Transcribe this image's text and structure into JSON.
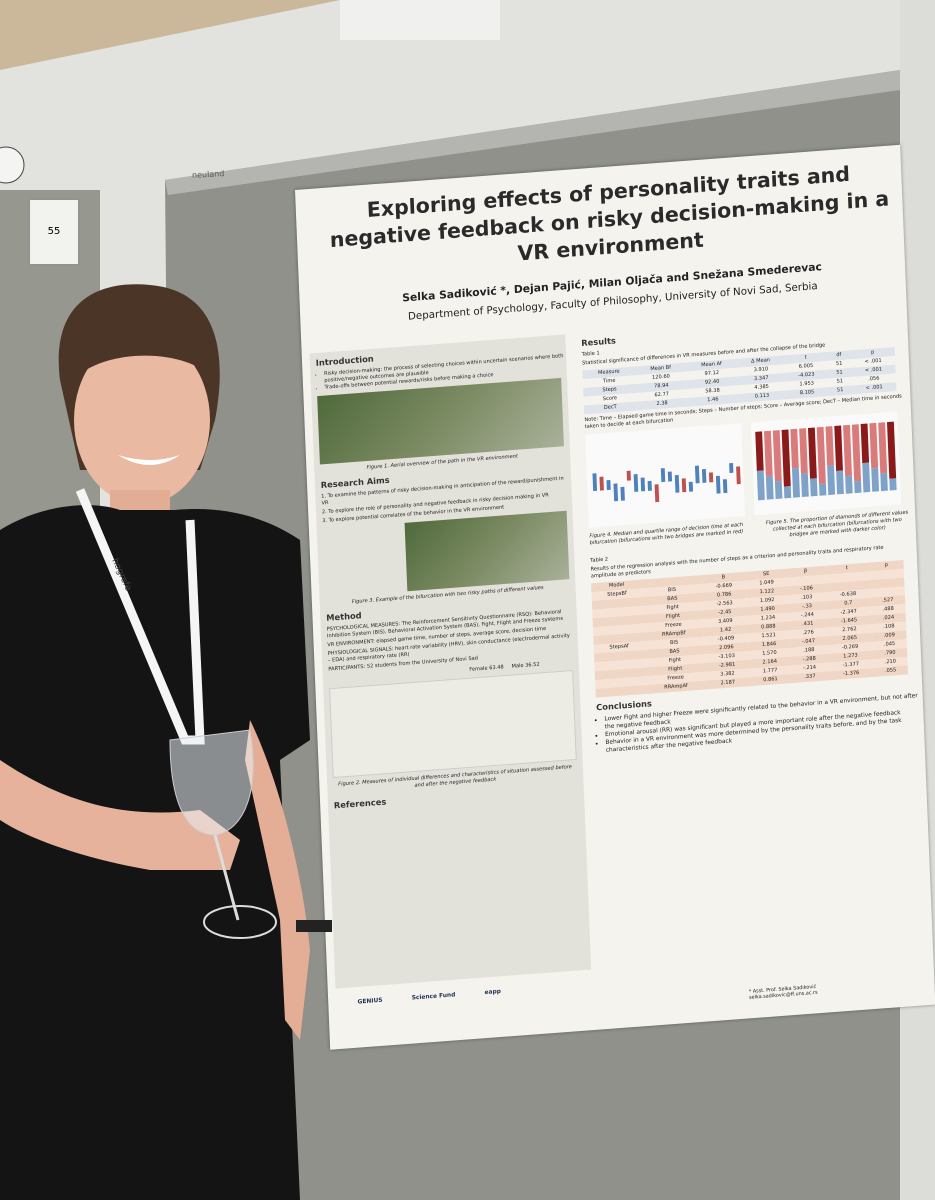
{
  "sign": "55",
  "board_label": "neuland",
  "lanyard": "hogrefe",
  "poster": {
    "title": "Exploring effects of personality traits and negative feedback on risky decision-making in a VR environment",
    "authors": "Selka Sadiković *, Dejan Pajić, Milan Oljača and Snežana Smederevac",
    "affiliation": "Department of Psychology, Faculty of Philosophy, University of Novi Sad, Serbia",
    "introduction": {
      "heading": "Introduction",
      "bullets": [
        "Risky decision-making: the process of selecting choices within uncertain scenarios where both positive/negative outcomes are plausible",
        "Trade-offs between potential rewards/risks before making a choice"
      ],
      "figure_caption": "Figure 1. Aerial overview of the path in the VR environment"
    },
    "research_aims": {
      "heading": "Research Aims",
      "items": [
        "1. To examine the patterns of risky decision-making in anticipation of the reward/punishment in VR",
        "2. To explore the role of personality and negative feedback in risky decision making in VR",
        "3. To explore potential correlates of the behavior in the VR environment"
      ],
      "figure_caption": "Figure 3. Example of the bifurcation with two risky paths of different values"
    },
    "method": {
      "heading": "Method",
      "text": [
        "PSYCHOLOGICAL MEASURES: The Reinforcement Sensitivity Questionnaire (RSQ): Behavioral Inhibition System (BIS), Behavioral Activation System (BAS), Fight, Flight and Freeze systems",
        "VR ENVIRONMENT: elapsed game time, number of steps, average score, decision time",
        "PHYSIOLOGICAL SIGNALS: heart rate variability (HRV), skin conductance (electrodermal activity – EDA) and respiratory rate (RR)",
        "PARTICIPANTS: 52 students from the University of Novi Sad"
      ],
      "pie_labels": [
        "Female 63.48",
        "Male 36.52"
      ],
      "figure_caption": "Figure 2. Measures of individual differences and characteristics of situation assessed before and after the negative feedback"
    },
    "results": {
      "heading": "Results",
      "table1": {
        "title": "Table 1",
        "caption": "Statistical significance of differences in VR measures before and after the collapse of the bridge",
        "columns": [
          "Measure",
          "Mean Bf",
          "Mean Af",
          "Δ Mean",
          "t",
          "df",
          "p"
        ],
        "rows": [
          [
            "Time",
            "120.60",
            "97.12",
            "3.910",
            "6.005",
            "51",
            "< .001"
          ],
          [
            "Steps",
            "78.94",
            "92.40",
            "3.347",
            "-4.023",
            "51",
            "< .001"
          ],
          [
            "Score",
            "62.77",
            "58.38",
            "4.385",
            "1.953",
            "51",
            ".056"
          ],
          [
            "DecT",
            "2.38",
            "1.46",
            "0.113",
            "8.105",
            "51",
            "< .001"
          ]
        ],
        "note": "Note: Time – Elapsed game time in seconds; Steps – Number of steps; Score – Average score; DecT – Median time in seconds taken to decide at each bifurcation"
      },
      "figure4_caption": "Figure 4. Median and quartile range of decision time at each bifurcation (bifurcations with two bridges are marked in red)",
      "figure5_caption": "Figure 5. The proportion of diamonds of different values collected at each bifurcation (bifurcations with two bridges are marked with darker color)",
      "table2": {
        "title": "Table 2",
        "caption": "Results of the regression analysis with the number of steps as a criterion and personality traits and respiratory rate amplitude as predictors",
        "columns": [
          "Model",
          "",
          "B",
          "SE",
          "β",
          "t",
          "p"
        ],
        "rows": [
          [
            "StepsBf",
            "BIS",
            "-0.669",
            "1.049",
            "",
            "",
            ""
          ],
          [
            "",
            "BAS",
            "0.786",
            "1.122",
            "-.106",
            "",
            ""
          ],
          [
            "",
            "Fight",
            "-2.563",
            "1.092",
            ".103",
            "-0.638",
            ""
          ],
          [
            "",
            "Flight",
            "-2.45",
            "1.490",
            "-.33",
            "0.7",
            ".527"
          ],
          [
            "",
            "Freeze",
            "3.409",
            "1.234",
            "-.244",
            "-2.347",
            ".488"
          ],
          [
            "",
            "RRAmpBf",
            "1.42",
            "0.888",
            ".431",
            "-1.645",
            ".024"
          ],
          [
            "StepsAf",
            "BIS",
            "-0.409",
            "1.521",
            ".276",
            "2.762",
            ".108"
          ],
          [
            "",
            "BAS",
            "2.096",
            "1.846",
            "-.047",
            "2.065",
            ".009"
          ],
          [
            "",
            "Fight",
            "-3.103",
            "1.570",
            ".188",
            "-0.269",
            ".045"
          ],
          [
            "",
            "Flight",
            "-2.981",
            "2.164",
            "-.288",
            "1.273",
            ".790"
          ],
          [
            "",
            "Freeze",
            "3.382",
            "1.777",
            "-.214",
            "-1.377",
            ".210"
          ],
          [
            "",
            "RRAmpAf",
            "2.187",
            "0.861",
            ".337",
            "-1.376",
            ".055"
          ]
        ]
      }
    },
    "conclusions": {
      "heading": "Conclusions",
      "bullets": [
        "Lower Fight and higher Freeze were significantly related to the behavior in a VR environment, but not after the negative feedback",
        "Emotional arousal (RR) was significant but played a more important role after the negative feedback",
        "Behavior in a VR environment was more determined by the personality traits before, and by the task characteristics after the negative feedback"
      ]
    },
    "references_heading": "References",
    "logos": [
      "GENIUS",
      "Science Fund",
      "eapp"
    ],
    "contact": "* Asst. Prof. Selka Sadiković selka.sadikovic@ff.uns.ac.rs"
  }
}
